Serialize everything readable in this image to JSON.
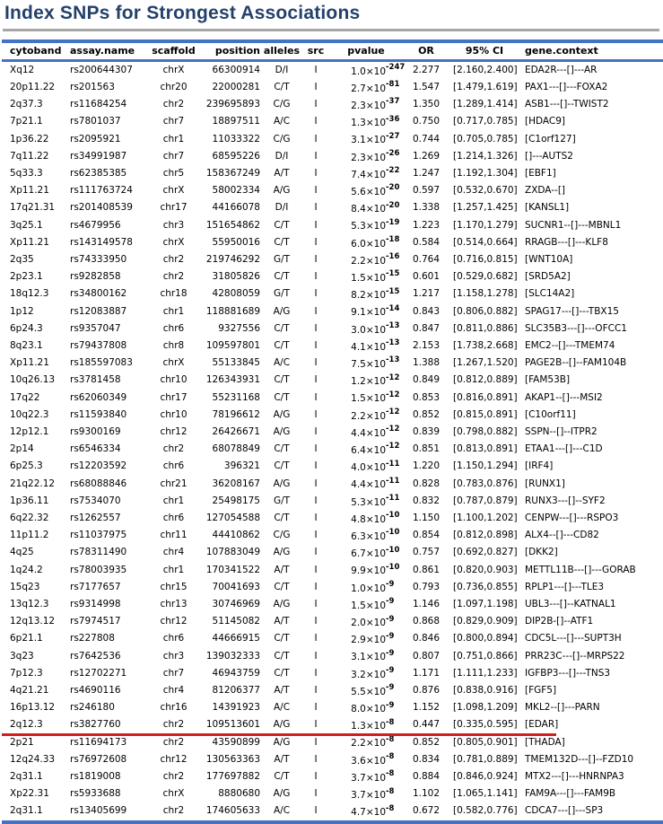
{
  "title": "Index SNPs for Strongest Associations",
  "colors": {
    "accent_blue": "#4472C4",
    "title_blue": "#24416B",
    "rule_gray": "#A6A6A6",
    "highlight_red": "#D21E1C"
  },
  "table": {
    "columns": [
      "cytoband",
      "assay.name",
      "scaffold",
      "position",
      "alleles",
      "src",
      "pvalue",
      "OR",
      "95% CI",
      "gene.context"
    ],
    "column_keys": [
      "cytoband",
      "assay-name",
      "scaffold",
      "position",
      "alleles",
      "src",
      "pvalue",
      "or",
      "ci",
      "gene-context"
    ],
    "highlight_row": 38,
    "rows": [
      [
        "Xq12",
        "rs200644307",
        "chrX",
        "66300914",
        "D/I",
        "I",
        "1.0×10^-247",
        "2.277",
        "[2.160,2.400]",
        "EDA2R---[]---AR"
      ],
      [
        "20p11.22",
        "rs201563",
        "chr20",
        "22000281",
        "C/T",
        "I",
        "2.7×10^-81",
        "1.547",
        "[1.479,1.619]",
        "PAX1---[]---FOXA2"
      ],
      [
        "2q37.3",
        "rs11684254",
        "chr2",
        "239695893",
        "C/G",
        "I",
        "2.3×10^-37",
        "1.350",
        "[1.289,1.414]",
        "ASB1---[]--TWIST2"
      ],
      [
        "7p21.1",
        "rs7801037",
        "chr7",
        "18897511",
        "A/C",
        "I",
        "1.3×10^-36",
        "0.750",
        "[0.717,0.785]",
        "[HDAC9]"
      ],
      [
        "1p36.22",
        "rs2095921",
        "chr1",
        "11033322",
        "C/G",
        "I",
        "3.1×10^-27",
        "0.744",
        "[0.705,0.785]",
        "[C1orf127]"
      ],
      [
        "7q11.22",
        "rs34991987",
        "chr7",
        "68595226",
        "D/I",
        "I",
        "2.3×10^-26",
        "1.269",
        "[1.214,1.326]",
        "[]---AUTS2"
      ],
      [
        "5q33.3",
        "rs62385385",
        "chr5",
        "158367249",
        "A/T",
        "I",
        "7.4×10^-22",
        "1.247",
        "[1.192,1.304]",
        "[EBF1]"
      ],
      [
        "Xp11.21",
        "rs111763724",
        "chrX",
        "58002334",
        "A/G",
        "I",
        "5.6×10^-20",
        "0.597",
        "[0.532,0.670]",
        "ZXDA--[]"
      ],
      [
        "17q21.31",
        "rs201408539",
        "chr17",
        "44166078",
        "D/I",
        "I",
        "8.4×10^-20",
        "1.338",
        "[1.257,1.425]",
        "[KANSL1]"
      ],
      [
        "3q25.1",
        "rs4679956",
        "chr3",
        "151654862",
        "C/T",
        "I",
        "5.3×10^-19",
        "1.223",
        "[1.170,1.279]",
        "SUCNR1--[]---MBNL1"
      ],
      [
        "Xp11.21",
        "rs143149578",
        "chrX",
        "55950016",
        "C/T",
        "I",
        "6.0×10^-18",
        "0.584",
        "[0.514,0.664]",
        "RRAGB---[]---KLF8"
      ],
      [
        "2q35",
        "rs74333950",
        "chr2",
        "219746292",
        "G/T",
        "I",
        "2.2×10^-16",
        "0.764",
        "[0.716,0.815]",
        "[WNT10A]"
      ],
      [
        "2p23.1",
        "rs9282858",
        "chr2",
        "31805826",
        "C/T",
        "I",
        "1.5×10^-15",
        "0.601",
        "[0.529,0.682]",
        "[SRD5A2]"
      ],
      [
        "18q12.3",
        "rs34800162",
        "chr18",
        "42808059",
        "G/T",
        "I",
        "8.2×10^-15",
        "1.217",
        "[1.158,1.278]",
        "[SLC14A2]"
      ],
      [
        "1p12",
        "rs12083887",
        "chr1",
        "118881689",
        "A/G",
        "I",
        "9.1×10^-14",
        "0.843",
        "[0.806,0.882]",
        "SPAG17---[]---TBX15"
      ],
      [
        "6p24.3",
        "rs9357047",
        "chr6",
        "9327556",
        "C/T",
        "I",
        "3.0×10^-13",
        "0.847",
        "[0.811,0.886]",
        "SLC35B3---[]---OFCC1"
      ],
      [
        "8q23.1",
        "rs79437808",
        "chr8",
        "109597801",
        "C/T",
        "I",
        "4.1×10^-13",
        "2.153",
        "[1.738,2.668]",
        "EMC2--[]---TMEM74"
      ],
      [
        "Xp11.21",
        "rs185597083",
        "chrX",
        "55133845",
        "A/C",
        "I",
        "7.5×10^-13",
        "1.388",
        "[1.267,1.520]",
        "PAGE2B--[]--FAM104B"
      ],
      [
        "10q26.13",
        "rs3781458",
        "chr10",
        "126343931",
        "C/T",
        "I",
        "1.2×10^-12",
        "0.849",
        "[0.812,0.889]",
        "[FAM53B]"
      ],
      [
        "17q22",
        "rs62060349",
        "chr17",
        "55231168",
        "C/T",
        "I",
        "1.5×10^-12",
        "0.853",
        "[0.816,0.891]",
        "AKAP1--[]---MSI2"
      ],
      [
        "10q22.3",
        "rs11593840",
        "chr10",
        "78196612",
        "A/G",
        "I",
        "2.2×10^-12",
        "0.852",
        "[0.815,0.891]",
        "[C10orf11]"
      ],
      [
        "12p12.1",
        "rs9300169",
        "chr12",
        "26426671",
        "A/G",
        "I",
        "4.4×10^-12",
        "0.839",
        "[0.798,0.882]",
        "SSPN--[]--ITPR2"
      ],
      [
        "2p14",
        "rs6546334",
        "chr2",
        "68078849",
        "C/T",
        "I",
        "6.4×10^-12",
        "0.851",
        "[0.813,0.891]",
        "ETAA1---[]---C1D"
      ],
      [
        "6p25.3",
        "rs12203592",
        "chr6",
        "396321",
        "C/T",
        "I",
        "4.0×10^-11",
        "1.220",
        "[1.150,1.294]",
        "[IRF4]"
      ],
      [
        "21q22.12",
        "rs68088846",
        "chr21",
        "36208167",
        "A/G",
        "I",
        "4.4×10^-11",
        "0.828",
        "[0.783,0.876]",
        "[RUNX1]"
      ],
      [
        "1p36.11",
        "rs7534070",
        "chr1",
        "25498175",
        "G/T",
        "I",
        "5.3×10^-11",
        "0.832",
        "[0.787,0.879]",
        "RUNX3---[]--SYF2"
      ],
      [
        "6q22.32",
        "rs1262557",
        "chr6",
        "127054588",
        "C/T",
        "I",
        "4.8×10^-10",
        "1.150",
        "[1.100,1.202]",
        "CENPW---[]---RSPO3"
      ],
      [
        "11p11.2",
        "rs11037975",
        "chr11",
        "44410862",
        "C/G",
        "I",
        "6.3×10^-10",
        "0.854",
        "[0.812,0.898]",
        "ALX4--[]---CD82"
      ],
      [
        "4q25",
        "rs78311490",
        "chr4",
        "107883049",
        "A/G",
        "I",
        "6.7×10^-10",
        "0.757",
        "[0.692,0.827]",
        "[DKK2]"
      ],
      [
        "1q24.2",
        "rs78003935",
        "chr1",
        "170341522",
        "A/T",
        "I",
        "9.9×10^-10",
        "0.861",
        "[0.820,0.903]",
        "METTL11B---[]---GORAB"
      ],
      [
        "15q23",
        "rs7177657",
        "chr15",
        "70041693",
        "C/T",
        "I",
        "1.0×10^-9",
        "0.793",
        "[0.736,0.855]",
        "RPLP1---[]---TLE3"
      ],
      [
        "13q12.3",
        "rs9314998",
        "chr13",
        "30746969",
        "A/G",
        "I",
        "1.5×10^-9",
        "1.146",
        "[1.097,1.198]",
        "UBL3---[]--KATNAL1"
      ],
      [
        "12q13.12",
        "rs7974517",
        "chr12",
        "51145082",
        "A/T",
        "I",
        "2.0×10^-9",
        "0.868",
        "[0.829,0.909]",
        "DIP2B-[]--ATF1"
      ],
      [
        "6p21.1",
        "rs227808",
        "chr6",
        "44666915",
        "C/T",
        "I",
        "2.9×10^-9",
        "0.846",
        "[0.800,0.894]",
        "CDC5L---[]---SUPT3H"
      ],
      [
        "3q23",
        "rs7642536",
        "chr3",
        "139032333",
        "C/T",
        "I",
        "3.1×10^-9",
        "0.807",
        "[0.751,0.866]",
        "PRR23C---[]--MRPS22"
      ],
      [
        "7p12.3",
        "rs12702271",
        "chr7",
        "46943759",
        "C/T",
        "I",
        "3.2×10^-9",
        "1.171",
        "[1.111,1.233]",
        "IGFBP3---[]---TNS3"
      ],
      [
        "4q21.21",
        "rs4690116",
        "chr4",
        "81206377",
        "A/T",
        "I",
        "5.5×10^-9",
        "0.876",
        "[0.838,0.916]",
        "[FGF5]"
      ],
      [
        "16p13.12",
        "rs246180",
        "chr16",
        "14391923",
        "A/C",
        "I",
        "8.0×10^-9",
        "1.152",
        "[1.098,1.209]",
        "MKL2--[]---PARN"
      ],
      [
        "2q12.3",
        "rs3827760",
        "chr2",
        "109513601",
        "A/G",
        "I",
        "1.3×10^-8",
        "0.447",
        "[0.335,0.595]",
        "[EDAR]"
      ],
      [
        "2p21",
        "rs11694173",
        "chr2",
        "43590899",
        "A/G",
        "I",
        "2.2×10^-8",
        "0.852",
        "[0.805,0.901]",
        "[THADA]"
      ],
      [
        "12q24.33",
        "rs76972608",
        "chr12",
        "130563363",
        "A/T",
        "I",
        "3.6×10^-8",
        "0.834",
        "[0.781,0.889]",
        "TMEM132D---[]--FZD10"
      ],
      [
        "2q31.1",
        "rs1819008",
        "chr2",
        "177697882",
        "C/T",
        "I",
        "3.7×10^-8",
        "0.884",
        "[0.846,0.924]",
        "MTX2---[]---HNRNPA3"
      ],
      [
        "Xp22.31",
        "rs5933688",
        "chrX",
        "8880680",
        "A/G",
        "I",
        "3.7×10^-8",
        "1.102",
        "[1.065,1.141]",
        "FAM9A---[]---FAM9B"
      ],
      [
        "2q31.1",
        "rs13405699",
        "chr2",
        "174605633",
        "A/C",
        "I",
        "4.7×10^-8",
        "0.672",
        "[0.582,0.776]",
        "CDCA7---[]---SP3"
      ]
    ]
  }
}
